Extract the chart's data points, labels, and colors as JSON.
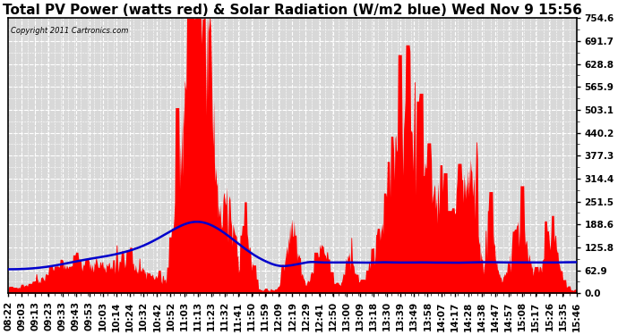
{
  "title": "Total PV Power (watts red) & Solar Radiation (W/m2 blue) Wed Nov 9 15:56",
  "copyright_text": "Copyright 2011 Cartronics.com",
  "y_max": 754.6,
  "y_min": 0.0,
  "y_ticks": [
    0.0,
    62.9,
    125.8,
    188.6,
    251.5,
    314.4,
    377.3,
    440.2,
    503.1,
    565.9,
    628.8,
    691.7,
    754.6
  ],
  "x_labels": [
    "08:22",
    "09:03",
    "09:13",
    "09:23",
    "09:33",
    "09:43",
    "09:53",
    "10:03",
    "10:14",
    "10:24",
    "10:32",
    "10:42",
    "10:52",
    "11:03",
    "11:13",
    "11:23",
    "11:32",
    "11:41",
    "11:50",
    "11:59",
    "12:09",
    "12:19",
    "12:29",
    "12:41",
    "12:50",
    "13:00",
    "13:09",
    "13:18",
    "13:30",
    "13:39",
    "13:49",
    "13:58",
    "14:07",
    "14:17",
    "14:28",
    "14:38",
    "14:47",
    "14:57",
    "15:08",
    "15:17",
    "15:26",
    "15:35",
    "15:46"
  ],
  "background_color": "#ffffff",
  "plot_background": "#d8d8d8",
  "grid_color": "#ffffff",
  "fill_color": "#ff0000",
  "line_color": "#0000cc",
  "title_fontsize": 11,
  "axis_fontsize": 7.5,
  "n_points": 800
}
